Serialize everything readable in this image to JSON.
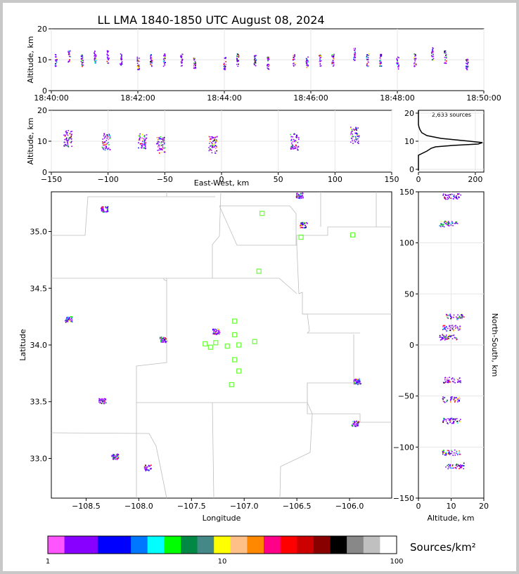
{
  "title": "LL LMA 1840-1850 UTC August 08, 2024",
  "colorbar": {
    "label": "Sources/km²",
    "ticks": [
      "1",
      "10",
      "100"
    ],
    "colors": [
      "#ff55ff",
      "#8800ff",
      "#8800ff",
      "#0000ff",
      "#0000ff",
      "#0077ff",
      "#00ffff",
      "#00ff00",
      "#008844",
      "#448888",
      "#ffff00",
      "#ffc088",
      "#ff8800",
      "#ff0088",
      "#ff0000",
      "#cc0000",
      "#880000",
      "#000000",
      "#888888",
      "#c0c0c0",
      "#ffffff"
    ]
  },
  "panels": {
    "time_height": {
      "ylabel": "Altitude, km",
      "yticks": [
        "0",
        "10",
        "20"
      ],
      "xticks": [
        "18:40:00",
        "18:42:00",
        "18:44:00",
        "18:46:00",
        "18:48:00",
        "18:50:00"
      ]
    },
    "ew_height": {
      "ylabel": "Altitude, km",
      "xlabel": "East-West, km",
      "yticks": [
        "0",
        "10",
        "20"
      ],
      "xticks": [
        "−150",
        "−100",
        "−50",
        "0",
        "50",
        "100",
        "150"
      ]
    },
    "histogram": {
      "annotation": "2,633 sources",
      "yticks": [
        "0",
        "10",
        "20"
      ],
      "xticks": [
        "0",
        "200"
      ]
    },
    "plan": {
      "xlabel": "Longitude",
      "ylabel": "Latitude",
      "xticks": [
        "−108.5",
        "−108.0",
        "−107.5",
        "−107.0",
        "−106.5",
        "−106.0"
      ],
      "yticks": [
        "33.0",
        "33.5",
        "34.0",
        "34.5",
        "35.0"
      ]
    },
    "ns_height": {
      "xlabel": "Altitude, km",
      "ylabel": "North-South, km",
      "xticks": [
        "0",
        "10",
        "20"
      ],
      "yticks": [
        "150",
        "100",
        "50",
        "0",
        "−50",
        "−100",
        "−150"
      ]
    }
  },
  "chart_data": [
    {
      "type": "scatter",
      "panel": "time_height",
      "xlabel": "",
      "ylabel": "Altitude, km",
      "xlim": [
        "18:40:00",
        "18:50:00"
      ],
      "ylim": [
        0,
        20
      ],
      "grid": true,
      "x_minutes": [
        0.1,
        0.4,
        0.7,
        1.0,
        1.3,
        1.6,
        2.0,
        2.3,
        2.6,
        3.0,
        3.3,
        4.0,
        4.3,
        4.7,
        5.0,
        5.6,
        5.9,
        6.2,
        6.5,
        7.0,
        7.3,
        7.6,
        8.0,
        8.4,
        8.8,
        9.1,
        9.6
      ],
      "y_km": [
        10,
        11,
        10,
        11,
        11,
        10,
        9,
        10,
        10,
        10,
        9,
        9,
        10,
        10,
        9,
        10,
        9,
        10,
        10,
        12,
        10,
        10,
        9,
        10,
        12,
        11,
        9
      ]
    },
    {
      "type": "scatter",
      "panel": "ew_height",
      "xlabel": "East-West, km",
      "ylabel": "Altitude, km",
      "xlim": [
        -150,
        150
      ],
      "ylim": [
        0,
        20
      ],
      "grid": true,
      "clusters": [
        {
          "x": -136,
          "y": 11
        },
        {
          "x": -102,
          "y": 10
        },
        {
          "x": -70,
          "y": 10
        },
        {
          "x": -54,
          "y": 9
        },
        {
          "x": -8,
          "y": 9
        },
        {
          "x": 64,
          "y": 10
        },
        {
          "x": 117,
          "y": 12
        }
      ]
    },
    {
      "type": "line",
      "panel": "histogram",
      "annotation": "2,633 sources",
      "xlim": [
        0,
        230
      ],
      "ylim": [
        -1,
        21
      ],
      "grid": true,
      "altitude_km": [
        -0.5,
        5,
        6.5,
        7.5,
        8,
        8.5,
        9,
        9.5,
        10,
        11,
        12,
        13,
        14,
        15,
        16,
        21
      ],
      "sources": [
        0,
        0,
        30,
        45,
        60,
        120,
        210,
        225,
        180,
        80,
        30,
        12,
        6,
        2,
        0,
        0
      ]
    },
    {
      "type": "scatter",
      "panel": "plan",
      "xlabel": "Longitude",
      "ylabel": "Latitude",
      "xlim": [
        -108.83,
        -105.6
      ],
      "ylim": [
        32.65,
        35.35
      ],
      "grid": false,
      "sources": [
        {
          "lon": -108.67,
          "lat": 34.23
        },
        {
          "lon": -107.77,
          "lat": 34.05
        },
        {
          "lon": -107.27,
          "lat": 34.12
        },
        {
          "lon": -106.48,
          "lat": 35.32
        },
        {
          "lon": -106.44,
          "lat": 35.06
        },
        {
          "lon": -105.93,
          "lat": 33.68
        },
        {
          "lon": -105.95,
          "lat": 33.31
        },
        {
          "lon": -108.35,
          "lat": 33.51
        },
        {
          "lon": -108.23,
          "lat": 33.02
        },
        {
          "lon": -107.92,
          "lat": 32.92
        },
        {
          "lon": -108.33,
          "lat": 35.2
        }
      ],
      "stations": [
        {
          "lon": -106.83,
          "lat": 35.16
        },
        {
          "lon": -105.97,
          "lat": 34.97
        },
        {
          "lon": -106.46,
          "lat": 34.95
        },
        {
          "lon": -106.86,
          "lat": 34.65
        },
        {
          "lon": -107.09,
          "lat": 34.21
        },
        {
          "lon": -107.09,
          "lat": 34.09
        },
        {
          "lon": -106.9,
          "lat": 34.03
        },
        {
          "lon": -107.37,
          "lat": 34.01
        },
        {
          "lon": -107.27,
          "lat": 34.02
        },
        {
          "lon": -107.05,
          "lat": 34.0
        },
        {
          "lon": -107.32,
          "lat": 33.98
        },
        {
          "lon": -107.16,
          "lat": 33.99
        },
        {
          "lon": -107.09,
          "lat": 33.87
        },
        {
          "lon": -107.05,
          "lat": 33.77
        },
        {
          "lon": -107.12,
          "lat": 33.65
        }
      ]
    },
    {
      "type": "scatter",
      "panel": "ns_height",
      "xlabel": "Altitude, km",
      "ylabel": "North-South, km",
      "xlim": [
        0,
        20
      ],
      "ylim": [
        -150,
        150
      ],
      "grid": true,
      "clusters": [
        {
          "alt": 10,
          "ns": 146
        },
        {
          "alt": 9,
          "ns": 119
        },
        {
          "alt": 11,
          "ns": 28
        },
        {
          "alt": 10,
          "ns": 17
        },
        {
          "alt": 9,
          "ns": 8
        },
        {
          "alt": 10,
          "ns": -34
        },
        {
          "alt": 10,
          "ns": -53
        },
        {
          "alt": 10,
          "ns": -74
        },
        {
          "alt": 10,
          "ns": -105
        },
        {
          "alt": 11,
          "ns": -118
        }
      ]
    }
  ]
}
